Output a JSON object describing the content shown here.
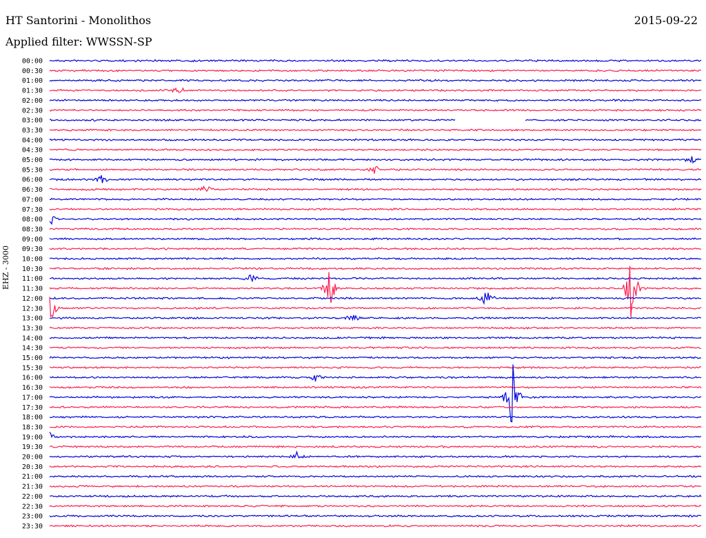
{
  "header": {
    "station": "HT Santorini - Monolithos",
    "date": "2015-09-22",
    "filter": "Applied filter: WWSSN-SP"
  },
  "channel_label": "EHZ - 3000",
  "colors": {
    "even": "#0000dd",
    "odd": "#ff1a4d",
    "text": "#000000"
  },
  "chart_data": {
    "type": "line",
    "title": "",
    "xlabel": "",
    "ylabel": "EHZ - 3000",
    "row_labels": [
      "00:00",
      "00:30",
      "01:00",
      "01:30",
      "02:00",
      "02:30",
      "03:00",
      "03:30",
      "04:00",
      "04:30",
      "05:00",
      "05:30",
      "06:00",
      "06:30",
      "07:00",
      "07:30",
      "08:00",
      "08:30",
      "09:00",
      "09:30",
      "10:00",
      "10:30",
      "11:00",
      "11:30",
      "12:00",
      "12:30",
      "13:00",
      "13:30",
      "14:00",
      "14:30",
      "15:00",
      "15:30",
      "16:00",
      "16:30",
      "17:00",
      "17:30",
      "18:00",
      "18:30",
      "19:00",
      "19:30",
      "20:00",
      "20:30",
      "21:00",
      "21:30",
      "22:00",
      "22:30",
      "23:00",
      "23:30"
    ],
    "rows_per_hour": 2,
    "minutes_per_row": 30,
    "data_gap": {
      "row": "03:00",
      "from_fraction": 0.623,
      "to_fraction": 0.73
    },
    "events": [
      {
        "row": "01:30",
        "at": 0.197,
        "amp": 8
      },
      {
        "row": "05:00",
        "at": 0.985,
        "amp": 8
      },
      {
        "row": "05:30",
        "at": 0.5,
        "amp": 6
      },
      {
        "row": "06:00",
        "at": 0.08,
        "amp": 7
      },
      {
        "row": "06:30",
        "at": 0.24,
        "amp": 7
      },
      {
        "row": "08:00",
        "at": 0.0,
        "amp": 14
      },
      {
        "row": "11:00",
        "at": 0.31,
        "amp": 7
      },
      {
        "row": "11:30",
        "at": 0.43,
        "amp": 30
      },
      {
        "row": "11:30",
        "at": 0.893,
        "amp": 55
      },
      {
        "row": "12:00",
        "at": 0.67,
        "amp": 12
      },
      {
        "row": "12:30",
        "at": 0.0,
        "amp": 30
      },
      {
        "row": "13:00",
        "at": 0.465,
        "amp": 8
      },
      {
        "row": "16:00",
        "at": 0.41,
        "amp": 7
      },
      {
        "row": "17:00",
        "at": 0.71,
        "amp": 60
      },
      {
        "row": "19:00",
        "at": 0.0,
        "amp": 7
      },
      {
        "row": "20:00",
        "at": 0.38,
        "amp": 7
      }
    ]
  }
}
